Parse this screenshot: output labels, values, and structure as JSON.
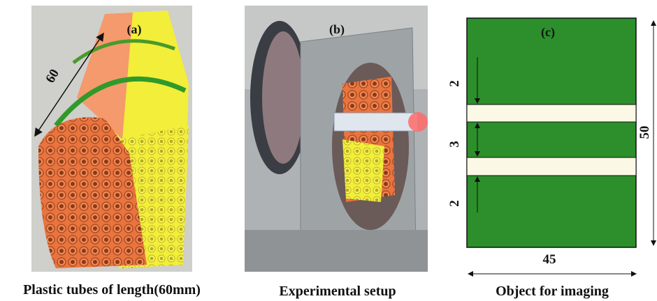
{
  "panels": [
    {
      "label": "(a)",
      "caption": "Plastic tubes of length(60mm)",
      "length": 60
    },
    {
      "label": "(b)",
      "caption": "Experimental setup"
    },
    {
      "label": "(c)",
      "caption": "Object for imaging",
      "gaps": [
        2,
        3,
        2
      ],
      "height": 50,
      "width": 45
    }
  ]
}
